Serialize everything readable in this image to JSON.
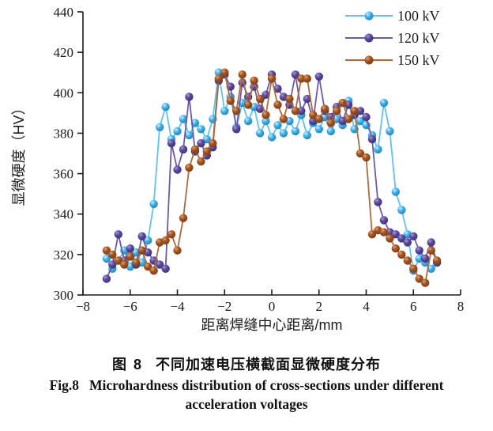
{
  "figure": {
    "caption_zh_label": "图 8",
    "caption_zh_text": "不同加速电压横截面显微硬度分布",
    "caption_en_label": "Fig.8",
    "caption_en_line1": "Microhardness distribution of cross-sections under different",
    "caption_en_line2": "acceleration voltages"
  },
  "chart_data": {
    "type": "scatter",
    "title": "",
    "xlabel": "距离焊缝中心距离/mm",
    "ylabel": "显微硬度（HV）",
    "xlim": [
      -8,
      8
    ],
    "ylim": [
      300,
      440
    ],
    "xticks": [
      -8,
      -6,
      -4,
      -2,
      0,
      2,
      4,
      6,
      8
    ],
    "yticks": [
      300,
      320,
      340,
      360,
      380,
      400,
      420,
      440
    ],
    "xtick_labels": [
      "−8",
      "−6",
      "−4",
      "−2",
      "0",
      "2",
      "4",
      "6",
      "8"
    ],
    "ytick_labels": [
      "300",
      "320",
      "340",
      "360",
      "380",
      "400",
      "420",
      "440"
    ],
    "grid": false,
    "legend_position": "top-right",
    "axis_color": "#1a1a1a",
    "x": [
      -7,
      -6.75,
      -6.5,
      -6.25,
      -6,
      -5.75,
      -5.5,
      -5.25,
      -5,
      -4.75,
      -4.5,
      -4.25,
      -4,
      -3.75,
      -3.5,
      -3.25,
      -3,
      -2.75,
      -2.5,
      -2.25,
      -2,
      -1.75,
      -1.5,
      -1.25,
      -1,
      -0.75,
      -0.5,
      -0.25,
      0,
      0.25,
      0.5,
      0.75,
      1,
      1.25,
      1.5,
      1.75,
      2,
      2.25,
      2.5,
      2.75,
      3,
      3.25,
      3.5,
      3.75,
      4,
      4.25,
      4.5,
      4.75,
      5,
      5.25,
      5.5,
      5.75,
      6,
      6.25,
      6.5,
      6.75,
      7
    ],
    "series": [
      {
        "name": "100 kV",
        "color": "#3fb0e8",
        "color_light": "#cdeffc",
        "color_dark": "#1d84bd",
        "line_color": "#5fc3ed",
        "values": [
          318,
          313,
          317,
          322,
          314,
          321,
          316,
          327,
          345,
          383,
          393,
          377,
          381,
          387,
          379,
          385,
          382,
          377,
          387,
          410,
          391,
          398,
          383,
          395,
          386,
          393,
          380,
          386,
          378,
          384,
          380,
          386,
          381,
          389,
          379,
          385,
          382,
          388,
          381,
          387,
          384,
          396,
          382,
          386,
          384,
          379,
          372,
          395,
          381,
          351,
          342,
          330,
          312,
          318,
          316,
          313,
          316
        ]
      },
      {
        "name": "120 kV",
        "color": "#5a489d",
        "color_light": "#a79ad1",
        "color_dark": "#3f2e7d",
        "line_color": "#6c59ab",
        "values": [
          308,
          315,
          330,
          317,
          323,
          315,
          329,
          321,
          317,
          315,
          313,
          375,
          362,
          372,
          398,
          371,
          375,
          369,
          373,
          406,
          409,
          403,
          382,
          405,
          398,
          403,
          392,
          399,
          409,
          402,
          398,
          394,
          409,
          391,
          397,
          386,
          408,
          391,
          388,
          393,
          386,
          394,
          389,
          391,
          388,
          377,
          346,
          337,
          331,
          330,
          328,
          326,
          329,
          322,
          318,
          326,
          316
        ]
      },
      {
        "name": "150 kV",
        "color": "#a4521d",
        "color_light": "#d9a478",
        "color_dark": "#7e3c12",
        "line_color": "#ad6a3c",
        "values": [
          322,
          320,
          317,
          315,
          319,
          316,
          322,
          314,
          312,
          326,
          327,
          330,
          322,
          338,
          363,
          372,
          366,
          371,
          375,
          407,
          410,
          396,
          391,
          409,
          394,
          406,
          397,
          389,
          407,
          394,
          387,
          397,
          391,
          407,
          407,
          389,
          387,
          392,
          385,
          391,
          395,
          387,
          391,
          370,
          368,
          330,
          332,
          331,
          328,
          323,
          320,
          317,
          313,
          308,
          306,
          322,
          317
        ]
      }
    ]
  }
}
